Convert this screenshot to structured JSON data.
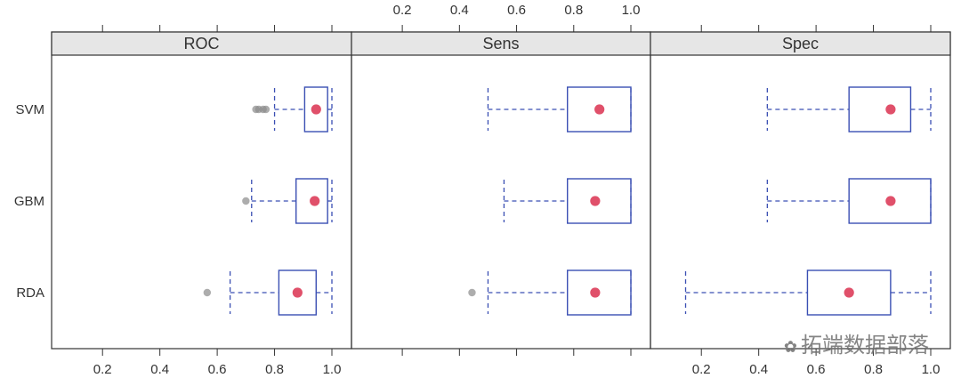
{
  "chart_data": {
    "type": "boxplot",
    "panels": [
      "ROC",
      "Sens",
      "Spec"
    ],
    "categories": [
      "SVM",
      "GBM",
      "RDA"
    ],
    "xlim": [
      0.1,
      1.0
    ],
    "ticks": [
      0.2,
      0.4,
      0.6,
      0.8,
      1.0
    ],
    "tick_labels": [
      "0.2",
      "0.4",
      "0.6",
      "0.8",
      "1.0"
    ],
    "colors": {
      "box": "#3a4fb3",
      "median": "#e0506a",
      "outlier": "#8a8a8a",
      "strip": "#e6e6e6",
      "frame": "#333333"
    },
    "data": {
      "ROC": {
        "SVM": {
          "min": 0.8,
          "q1": 0.905,
          "median": 0.945,
          "q3": 0.985,
          "max": 1.0,
          "outliers": [
            0.735,
            0.745,
            0.76,
            0.77
          ]
        },
        "GBM": {
          "min": 0.72,
          "q1": 0.875,
          "median": 0.94,
          "q3": 0.985,
          "max": 1.0,
          "outliers": [
            0.7
          ]
        },
        "RDA": {
          "min": 0.645,
          "q1": 0.815,
          "median": 0.88,
          "q3": 0.945,
          "max": 1.0,
          "outliers": [
            0.565
          ]
        }
      },
      "Sens": {
        "SVM": {
          "min": 0.5,
          "q1": 0.778,
          "median": 0.89,
          "q3": 1.0,
          "max": 1.0,
          "outliers": []
        },
        "GBM": {
          "min": 0.556,
          "q1": 0.778,
          "median": 0.875,
          "q3": 1.0,
          "max": 1.0,
          "outliers": []
        },
        "RDA": {
          "min": 0.5,
          "q1": 0.778,
          "median": 0.875,
          "q3": 1.0,
          "max": 1.0,
          "outliers": [
            0.444
          ]
        }
      },
      "Spec": {
        "SVM": {
          "min": 0.43,
          "q1": 0.715,
          "median": 0.86,
          "q3": 0.93,
          "max": 1.0,
          "outliers": []
        },
        "GBM": {
          "min": 0.43,
          "q1": 0.715,
          "median": 0.86,
          "q3": 1.0,
          "max": 1.0,
          "outliers": []
        },
        "RDA": {
          "min": 0.145,
          "q1": 0.57,
          "median": 0.715,
          "q3": 0.86,
          "max": 1.0,
          "outliers": []
        }
      }
    }
  },
  "watermark": {
    "text": "拓端数据部落"
  }
}
